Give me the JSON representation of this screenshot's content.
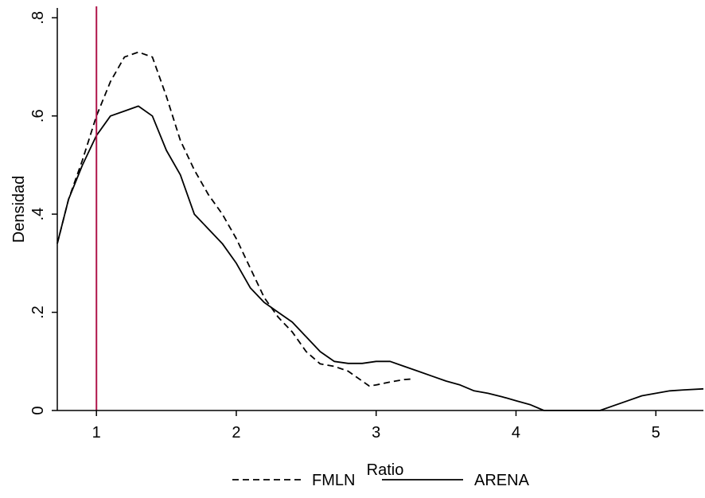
{
  "chart_data": {
    "type": "line",
    "title": "",
    "xlabel": "Ratio",
    "ylabel": "Densidad",
    "xlim": [
      0.72,
      5.34
    ],
    "ylim": [
      0,
      0.82
    ],
    "xticks": [
      {
        "value": 1,
        "label": "1"
      },
      {
        "value": 2,
        "label": "2"
      },
      {
        "value": 3,
        "label": "3"
      },
      {
        "value": 4,
        "label": "4"
      },
      {
        "value": 5,
        "label": "5"
      }
    ],
    "yticks": [
      {
        "value": 0,
        "label": "0"
      },
      {
        "value": 0.2,
        "label": ".2"
      },
      {
        "value": 0.4,
        "label": ".4"
      },
      {
        "value": 0.6,
        "label": ".6"
      },
      {
        "value": 0.8,
        "label": ".8"
      }
    ],
    "grid": false,
    "legend_position": "bottom",
    "reference_line": {
      "x": 1,
      "color": "#b0154a"
    },
    "series": [
      {
        "name": "FMLN",
        "style": "dashed",
        "color": "#000000",
        "x": [
          0.72,
          0.8,
          0.9,
          1.0,
          1.1,
          1.2,
          1.3,
          1.4,
          1.5,
          1.6,
          1.7,
          1.8,
          1.9,
          2.0,
          2.1,
          2.2,
          2.3,
          2.4,
          2.5,
          2.6,
          2.7,
          2.8,
          2.9,
          2.95,
          3.0,
          3.1,
          3.2,
          3.25
        ],
        "y": [
          0.34,
          0.43,
          0.51,
          0.6,
          0.67,
          0.72,
          0.73,
          0.72,
          0.64,
          0.55,
          0.49,
          0.44,
          0.4,
          0.35,
          0.29,
          0.23,
          0.19,
          0.16,
          0.12,
          0.095,
          0.09,
          0.08,
          0.06,
          0.05,
          0.052,
          0.058,
          0.063,
          0.064
        ]
      },
      {
        "name": "ARENA",
        "style": "solid",
        "color": "#000000",
        "x": [
          0.72,
          0.8,
          0.9,
          1.0,
          1.1,
          1.2,
          1.3,
          1.4,
          1.5,
          1.6,
          1.7,
          1.8,
          1.9,
          2.0,
          2.1,
          2.2,
          2.3,
          2.4,
          2.5,
          2.6,
          2.7,
          2.8,
          2.9,
          3.0,
          3.1,
          3.2,
          3.3,
          3.4,
          3.5,
          3.6,
          3.7,
          3.8,
          3.9,
          4.0,
          4.1,
          4.2,
          4.3,
          4.4,
          4.5,
          4.6,
          4.7,
          4.8,
          4.9,
          5.0,
          5.1,
          5.2,
          5.34
        ],
        "y": [
          0.34,
          0.43,
          0.5,
          0.56,
          0.6,
          0.61,
          0.62,
          0.6,
          0.53,
          0.48,
          0.4,
          0.37,
          0.34,
          0.3,
          0.25,
          0.22,
          0.2,
          0.18,
          0.15,
          0.12,
          0.1,
          0.096,
          0.096,
          0.1,
          0.1,
          0.09,
          0.08,
          0.07,
          0.06,
          0.052,
          0.04,
          0.035,
          0.028,
          0.02,
          0.012,
          0.0,
          0.0,
          0.0,
          0.0,
          0.0,
          0.01,
          0.02,
          0.03,
          0.035,
          0.04,
          0.042,
          0.044
        ]
      }
    ]
  }
}
